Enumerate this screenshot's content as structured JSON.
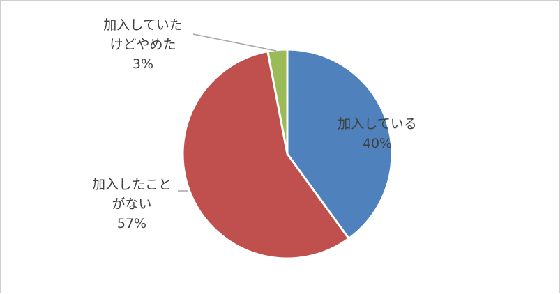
{
  "chart_data": {
    "type": "pie",
    "title": "",
    "start_angle_deg": 0,
    "direction": "clockwise",
    "slices": [
      {
        "label": "加入している",
        "label_lines": [
          "加入している"
        ],
        "value": 40,
        "value_label": "40%",
        "color": "#4f81bd"
      },
      {
        "label": "加入したことがない",
        "label_lines": [
          "加入したこと",
          "がない"
        ],
        "value": 57,
        "value_label": "57%",
        "color": "#c0504d"
      },
      {
        "label": "加入していたけどやめた",
        "label_lines": [
          "加入していた",
          "けどやめた"
        ],
        "value": 3,
        "value_label": "3%",
        "color": "#9bbb59"
      }
    ],
    "legend": "none",
    "slice_border_color": "#ffffff",
    "leader_line_color": "#a6a6a6"
  }
}
